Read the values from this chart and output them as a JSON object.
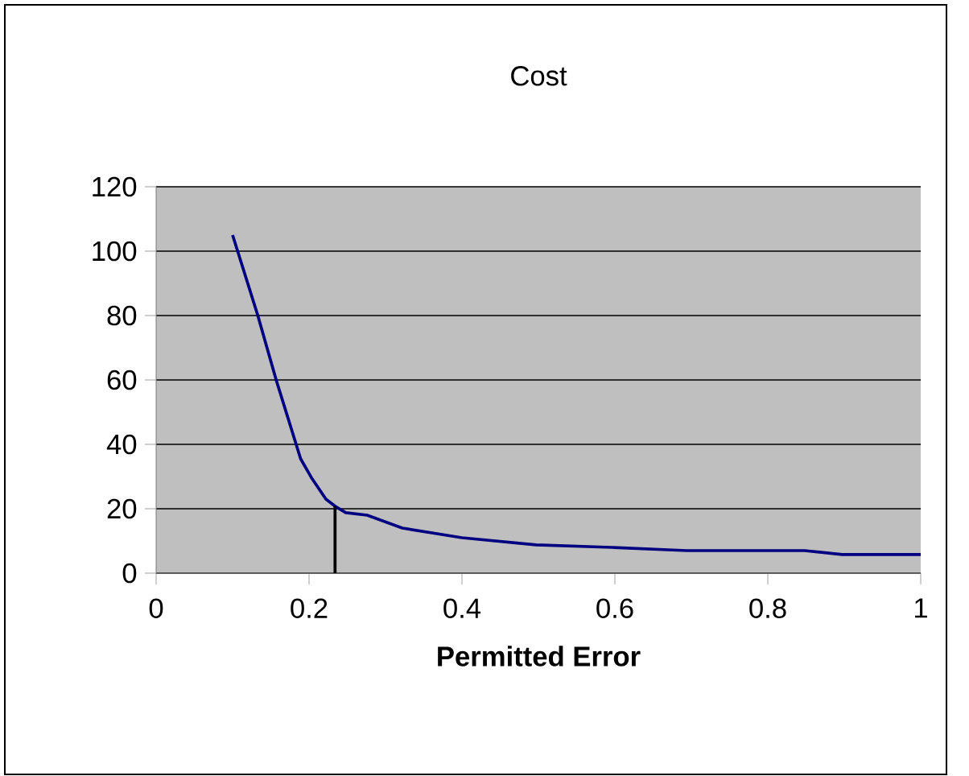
{
  "chart_data": {
    "type": "line",
    "title": "Cost",
    "xlabel": "Permitted Error",
    "xlim": [
      0,
      1
    ],
    "xticks": [
      0,
      0.2,
      0.4,
      0.6,
      0.8,
      1
    ],
    "ylim": [
      0,
      120
    ],
    "yticks": [
      0,
      20,
      40,
      60,
      80,
      100,
      120
    ],
    "grid": "y",
    "series": [
      {
        "color": "#000080",
        "x": [
          0.1,
          0.133,
          0.157,
          0.189,
          0.203,
          0.222,
          0.234,
          0.248,
          0.276,
          0.322,
          0.4,
          0.497,
          0.596,
          0.694,
          0.848,
          0.897,
          1.0
        ],
        "values": [
          105,
          80,
          60,
          35.5,
          29.7,
          23,
          20.8,
          18.8,
          18,
          14,
          11,
          8.8,
          8,
          7,
          7,
          5.8,
          5.8
        ]
      }
    ],
    "ref_lines": [
      {
        "axis": "x",
        "value": 0.234,
        "color": "#000000"
      }
    ]
  }
}
